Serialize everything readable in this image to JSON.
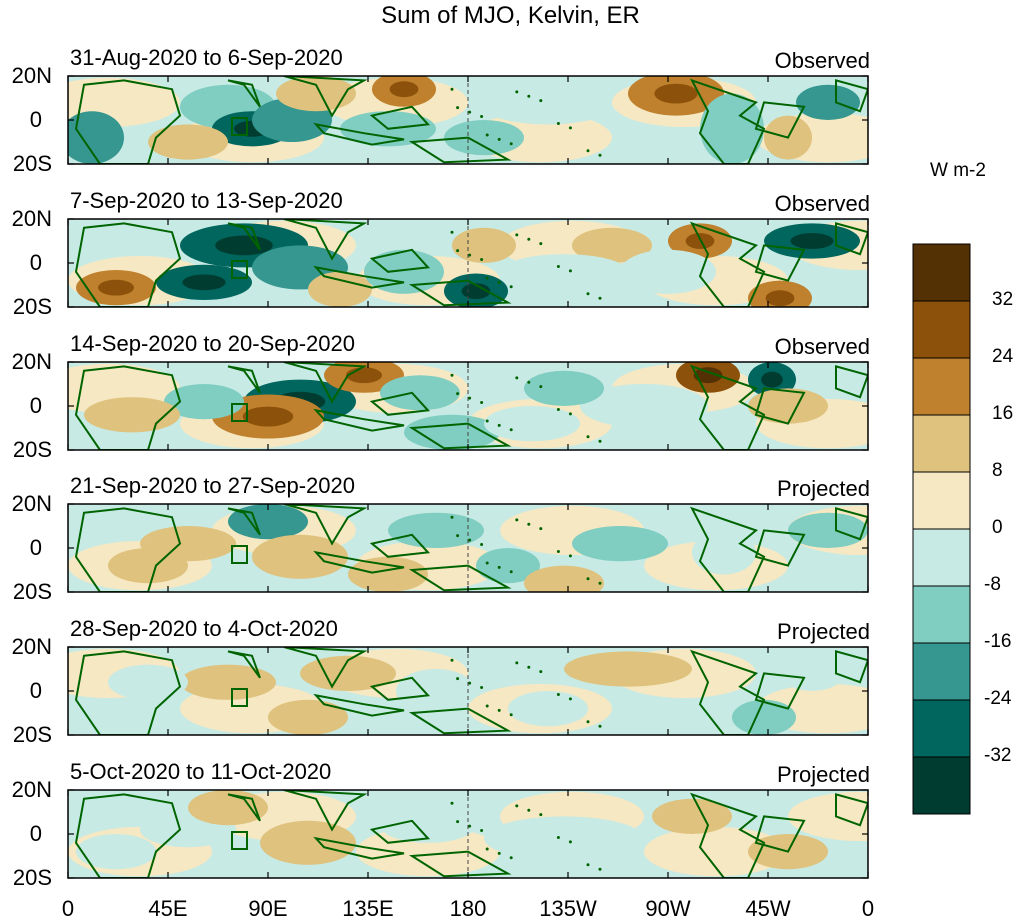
{
  "title": "Sum of MJO, Kelvin, ER",
  "panels": [
    {
      "date_range": "31-Aug-2020 to 6-Sep-2020",
      "kind": "Observed"
    },
    {
      "date_range": "7-Sep-2020 to 13-Sep-2020",
      "kind": "Observed"
    },
    {
      "date_range": "14-Sep-2020 to 20-Sep-2020",
      "kind": "Observed"
    },
    {
      "date_range": "21-Sep-2020 to 27-Sep-2020",
      "kind": "Projected"
    },
    {
      "date_range": "28-Sep-2020 to 4-Oct-2020",
      "kind": "Projected"
    },
    {
      "date_range": "5-Oct-2020 to 11-Oct-2020",
      "kind": "Projected"
    }
  ],
  "lat_labels": [
    "20N",
    "0",
    "20S"
  ],
  "lon_labels": [
    "0",
    "45E",
    "90E",
    "135E",
    "180",
    "135W",
    "90W",
    "45W",
    "0"
  ],
  "colorbar": {
    "units": "W m-2",
    "labels": [
      "32",
      "24",
      "16",
      "8",
      "0",
      "-8",
      "-16",
      "-24",
      "-32"
    ],
    "colors": [
      "#543005",
      "#8c510a",
      "#bf812d",
      "#dfc27d",
      "#f6e8c3",
      "#c7eae5",
      "#80cdc1",
      "#35978f",
      "#01665e",
      "#003c30"
    ]
  },
  "colors": {
    "coast": "#006400",
    "frame": "#000000"
  }
}
